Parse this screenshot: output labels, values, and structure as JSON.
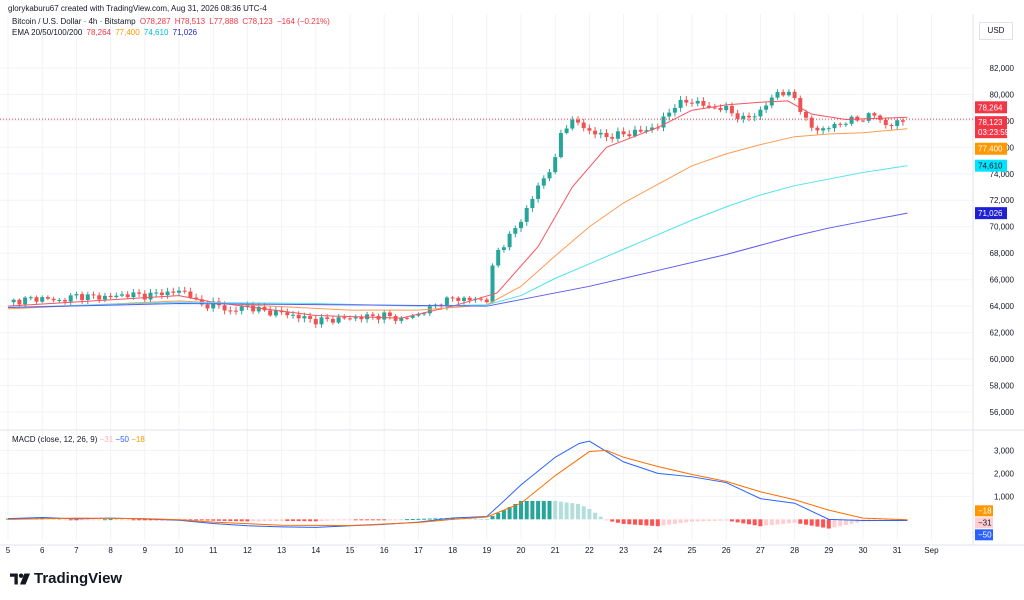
{
  "header": {
    "author_line": "glorykaburu67 created with TradingView.com, Aug 31, 2026 08:36 UTC-4",
    "symbol": "Bitcoin / U.S. Dollar · 4h · Bitstamp",
    "ohlc": {
      "o": "O78,287",
      "h": "H78,513",
      "l": "L77,888",
      "c": "C78,123",
      "chg": "−164 (−0.21%)"
    },
    "ema_label": "EMA 20/50/100/200",
    "ema_values": [
      "78,264",
      "77,400",
      "74,610",
      "71,026"
    ]
  },
  "currency": "USD",
  "macd_legend": {
    "label": "MACD (close, 12, 26, 9)",
    "v1": "−31",
    "v2": "−50",
    "v3": "−18"
  },
  "brand": "TradingView",
  "colors": {
    "up": "#26a69a",
    "down": "#ef5350",
    "ema20": "#f7525f",
    "ema50": "#ff9b50",
    "ema100": "#4ee2ec",
    "ema200": "#5b5bf0",
    "macd": "#2962ff",
    "signal": "#ff6d00"
  },
  "chart_data": {
    "type": "line",
    "y_ticks": [
      56000,
      58000,
      60000,
      62000,
      64000,
      66000,
      68000,
      70000,
      72000,
      74000,
      76000,
      78000,
      80000,
      82000
    ],
    "y_tick_labels": [
      "56,000",
      "58,000",
      "60,000",
      "62,000",
      "64,000",
      "66,000",
      "68,000",
      "70,000",
      "72,000",
      "74,000",
      "76,000",
      "78,000",
      "80,000",
      "82,000"
    ],
    "x_tick_labels": [
      "5",
      "6",
      "7",
      "8",
      "9",
      "10",
      "11",
      "12",
      "13",
      "14",
      "15",
      "16",
      "17",
      "18",
      "19",
      "20",
      "21",
      "22",
      "23",
      "24",
      "25",
      "26",
      "27",
      "28",
      "29",
      "30",
      "31",
      "Sep"
    ],
    "ylim": [
      54800,
      83800
    ],
    "price_labels": [
      {
        "value": 78264,
        "text": "78,264",
        "bg": "#f23645"
      },
      {
        "value": 78123,
        "text": "78,123",
        "bg": "#f23645",
        "sub": "03:23:59"
      },
      {
        "value": 77400,
        "text": "77,400",
        "bg": "#ff9800"
      },
      {
        "value": 74610,
        "text": "74,610",
        "bg": "#00e5ff"
      },
      {
        "value": 71026,
        "text": "71,026",
        "bg": "#1f1fd6"
      }
    ],
    "macd_ticks": [
      1000,
      2000,
      3000
    ],
    "macd_tick_labels": [
      "1,000",
      "2,000",
      "3,000"
    ],
    "macd_ylim": [
      -900,
      3800
    ],
    "macd_labels": [
      {
        "value": -18,
        "text": "−18",
        "bg": "#ff9800"
      },
      {
        "value": -31,
        "text": "−31",
        "bg": "#ffcdd2"
      },
      {
        "value": -50,
        "text": "−50",
        "bg": "#2962ff"
      }
    ],
    "price_key": [
      {
        "d": 5.0,
        "p": 64300
      },
      {
        "d": 5.5,
        "p": 64500
      },
      {
        "d": 6.0,
        "p": 64600
      },
      {
        "d": 6.5,
        "p": 64400
      },
      {
        "d": 7.0,
        "p": 64800
      },
      {
        "d": 7.5,
        "p": 64700
      },
      {
        "d": 8.0,
        "p": 64700
      },
      {
        "d": 8.5,
        "p": 64900
      },
      {
        "d": 9.0,
        "p": 64800
      },
      {
        "d": 9.5,
        "p": 65000
      },
      {
        "d": 10.0,
        "p": 65100
      },
      {
        "d": 10.3,
        "p": 65000
      },
      {
        "d": 10.6,
        "p": 64000
      },
      {
        "d": 11.0,
        "p": 64200
      },
      {
        "d": 11.5,
        "p": 63600
      },
      {
        "d": 12.0,
        "p": 64000
      },
      {
        "d": 12.5,
        "p": 63600
      },
      {
        "d": 13.0,
        "p": 63500
      },
      {
        "d": 13.5,
        "p": 63200
      },
      {
        "d": 14.0,
        "p": 62900
      },
      {
        "d": 14.5,
        "p": 63000
      },
      {
        "d": 15.0,
        "p": 63100
      },
      {
        "d": 15.5,
        "p": 63200
      },
      {
        "d": 16.0,
        "p": 63300
      },
      {
        "d": 16.5,
        "p": 63000
      },
      {
        "d": 17.0,
        "p": 63400
      },
      {
        "d": 17.5,
        "p": 64100
      },
      {
        "d": 18.0,
        "p": 64600
      },
      {
        "d": 18.5,
        "p": 64500
      },
      {
        "d": 19.0,
        "p": 64500
      },
      {
        "d": 19.25,
        "p": 68000
      },
      {
        "d": 19.6,
        "p": 69000
      },
      {
        "d": 20.0,
        "p": 70500
      },
      {
        "d": 20.5,
        "p": 73000
      },
      {
        "d": 21.0,
        "p": 75000
      },
      {
        "d": 21.2,
        "p": 77500
      },
      {
        "d": 21.6,
        "p": 78000
      },
      {
        "d": 22.0,
        "p": 77200
      },
      {
        "d": 22.5,
        "p": 76800
      },
      {
        "d": 23.0,
        "p": 77000
      },
      {
        "d": 23.5,
        "p": 77200
      },
      {
        "d": 24.0,
        "p": 77600
      },
      {
        "d": 24.5,
        "p": 79200
      },
      {
        "d": 25.0,
        "p": 79500
      },
      {
        "d": 25.5,
        "p": 79000
      },
      {
        "d": 26.0,
        "p": 78900
      },
      {
        "d": 26.5,
        "p": 78100
      },
      {
        "d": 27.0,
        "p": 78700
      },
      {
        "d": 27.5,
        "p": 80200
      },
      {
        "d": 28.0,
        "p": 79800
      },
      {
        "d": 28.4,
        "p": 77600
      },
      {
        "d": 28.8,
        "p": 77300
      },
      {
        "d": 29.2,
        "p": 77700
      },
      {
        "d": 29.6,
        "p": 78000
      },
      {
        "d": 30.0,
        "p": 78200
      },
      {
        "d": 30.4,
        "p": 78500
      },
      {
        "d": 30.7,
        "p": 77500
      },
      {
        "d": 31.0,
        "p": 77900
      },
      {
        "d": 31.3,
        "p": 78100
      }
    ],
    "series": [
      {
        "name": "EMA 20",
        "points": [
          [
            5,
            64000
          ],
          [
            10,
            64800
          ],
          [
            11,
            64300
          ],
          [
            14,
            63300
          ],
          [
            16.5,
            63100
          ],
          [
            18,
            64000
          ],
          [
            19.3,
            65000
          ],
          [
            20.5,
            68500
          ],
          [
            21.5,
            73000
          ],
          [
            22.5,
            76000
          ],
          [
            24,
            77500
          ],
          [
            25,
            78800
          ],
          [
            26,
            79200
          ],
          [
            27,
            79400
          ],
          [
            27.8,
            79500
          ],
          [
            28.5,
            78500
          ],
          [
            29.5,
            78100
          ],
          [
            31.3,
            78264
          ]
        ]
      },
      {
        "name": "EMA 50",
        "points": [
          [
            5,
            63800
          ],
          [
            10,
            64400
          ],
          [
            12,
            64100
          ],
          [
            15,
            63700
          ],
          [
            17,
            63700
          ],
          [
            19,
            64100
          ],
          [
            20,
            65500
          ],
          [
            21,
            67800
          ],
          [
            22,
            70000
          ],
          [
            23,
            71800
          ],
          [
            24,
            73200
          ],
          [
            25,
            74600
          ],
          [
            26,
            75500
          ],
          [
            27,
            76200
          ],
          [
            28,
            76800
          ],
          [
            29,
            77000
          ],
          [
            30,
            77100
          ],
          [
            31.3,
            77400
          ]
        ]
      },
      {
        "name": "EMA 100",
        "points": [
          [
            5,
            63900
          ],
          [
            10,
            64300
          ],
          [
            14,
            64200
          ],
          [
            17,
            64000
          ],
          [
            19,
            64100
          ],
          [
            20,
            64800
          ],
          [
            21,
            66100
          ],
          [
            22,
            67200
          ],
          [
            23,
            68300
          ],
          [
            24,
            69400
          ],
          [
            25,
            70500
          ],
          [
            26,
            71500
          ],
          [
            27,
            72400
          ],
          [
            28,
            73100
          ],
          [
            29,
            73600
          ],
          [
            30,
            74100
          ],
          [
            31.3,
            74610
          ]
        ]
      },
      {
        "name": "EMA 200",
        "points": [
          [
            5,
            63900
          ],
          [
            10,
            64200
          ],
          [
            15,
            64100
          ],
          [
            19,
            64000
          ],
          [
            20,
            64500
          ],
          [
            22,
            65500
          ],
          [
            24,
            66700
          ],
          [
            26,
            67900
          ],
          [
            28,
            69300
          ],
          [
            29,
            69900
          ],
          [
            30,
            70400
          ],
          [
            31.3,
            71026
          ]
        ]
      }
    ],
    "macd_line": [
      [
        5,
        30
      ],
      [
        6,
        80
      ],
      [
        7,
        20
      ],
      [
        8,
        50
      ],
      [
        9,
        20
      ],
      [
        10,
        -40
      ],
      [
        11,
        -180
      ],
      [
        12,
        -280
      ],
      [
        13,
        -330
      ],
      [
        14,
        -350
      ],
      [
        15,
        -280
      ],
      [
        16,
        -220
      ],
      [
        17,
        -120
      ],
      [
        18,
        60
      ],
      [
        19,
        120
      ],
      [
        19.5,
        800
      ],
      [
        20,
        1500
      ],
      [
        21,
        2700
      ],
      [
        21.7,
        3300
      ],
      [
        22,
        3400
      ],
      [
        23,
        2500
      ],
      [
        24,
        2000
      ],
      [
        25,
        1850
      ],
      [
        26,
        1600
      ],
      [
        27,
        900
      ],
      [
        28,
        700
      ],
      [
        29,
        0
      ],
      [
        30,
        -50
      ],
      [
        31.3,
        -50
      ]
    ],
    "signal_line": [
      [
        5,
        0
      ],
      [
        7,
        50
      ],
      [
        9,
        30
      ],
      [
        10,
        -20
      ],
      [
        11,
        -120
      ],
      [
        13,
        -260
      ],
      [
        15,
        -270
      ],
      [
        17,
        -140
      ],
      [
        18,
        0
      ],
      [
        19,
        100
      ],
      [
        20,
        700
      ],
      [
        21,
        1900
      ],
      [
        22,
        2950
      ],
      [
        22.5,
        3000
      ],
      [
        23,
        2700
      ],
      [
        24,
        2300
      ],
      [
        25,
        1950
      ],
      [
        26,
        1650
      ],
      [
        27,
        1200
      ],
      [
        28,
        850
      ],
      [
        29,
        400
      ],
      [
        30,
        50
      ],
      [
        31.3,
        -18
      ]
    ]
  }
}
